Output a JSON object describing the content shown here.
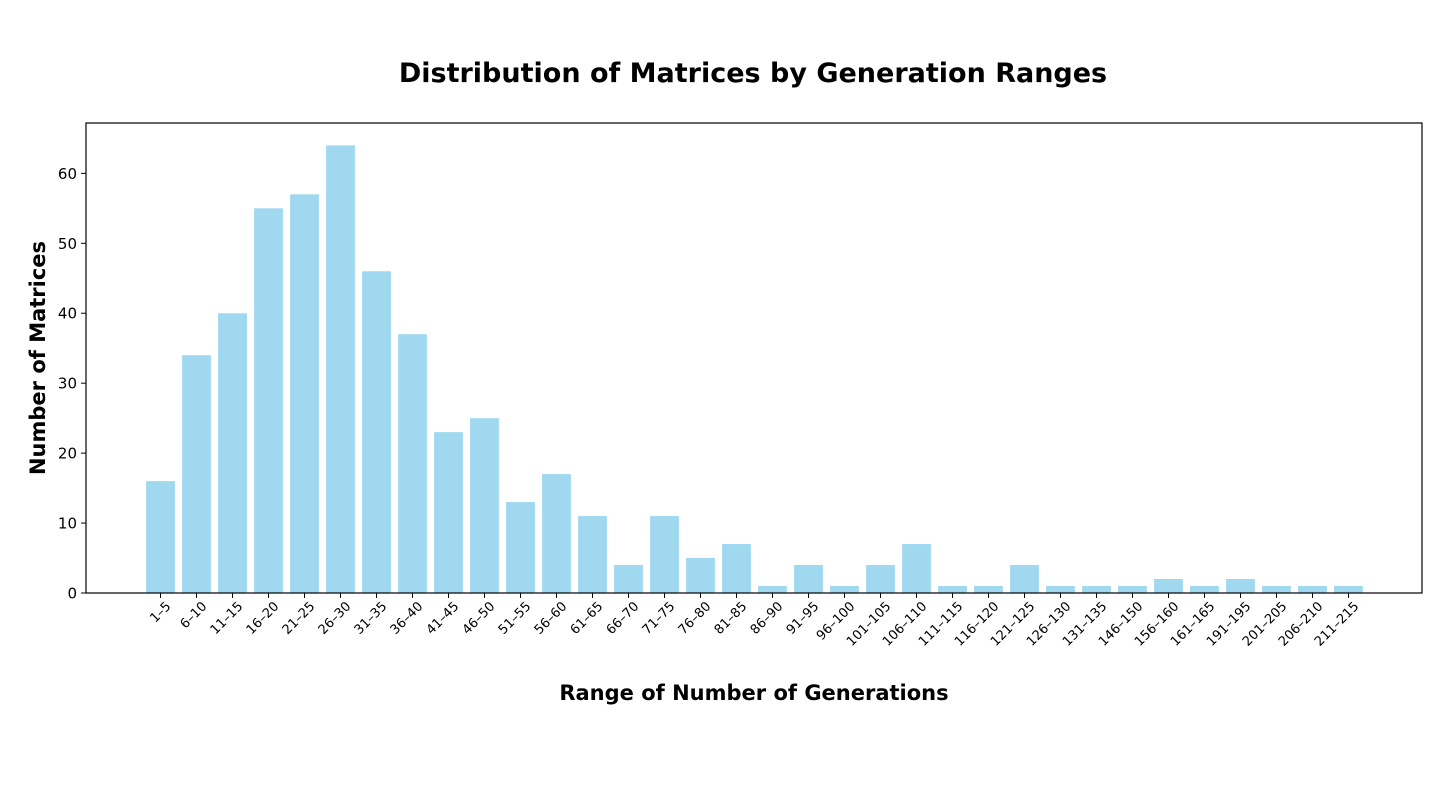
{
  "chart_data": {
    "type": "bar",
    "title": "Distribution of Matrices by Generation Ranges",
    "xlabel": "Range of Number of Generations",
    "ylabel": "Number of Matrices",
    "categories": [
      "1–5",
      "6–10",
      "11–15",
      "16–20",
      "21–25",
      "26–30",
      "31–35",
      "36–40",
      "41–45",
      "46–50",
      "51–55",
      "56–60",
      "61–65",
      "66–70",
      "71–75",
      "76–80",
      "81–85",
      "86–90",
      "91–95",
      "96–100",
      "101–105",
      "106–110",
      "111–115",
      "116–120",
      "121–125",
      "126–130",
      "131–135",
      "146–150",
      "156–160",
      "161–165",
      "191–195",
      "201–205",
      "206–210",
      "211–215"
    ],
    "values": [
      16,
      34,
      40,
      55,
      57,
      64,
      46,
      37,
      23,
      25,
      13,
      17,
      11,
      4,
      11,
      5,
      7,
      1,
      4,
      1,
      4,
      7,
      1,
      1,
      4,
      1,
      1,
      1,
      2,
      1,
      2,
      1,
      1,
      1
    ],
    "ylim": [
      0,
      67.2
    ],
    "yticks": [
      0,
      10,
      20,
      30,
      40,
      50,
      60
    ],
    "bar_color": "#87ceeb",
    "bar_opacity": 0.8,
    "grid": false,
    "legend": "none"
  }
}
